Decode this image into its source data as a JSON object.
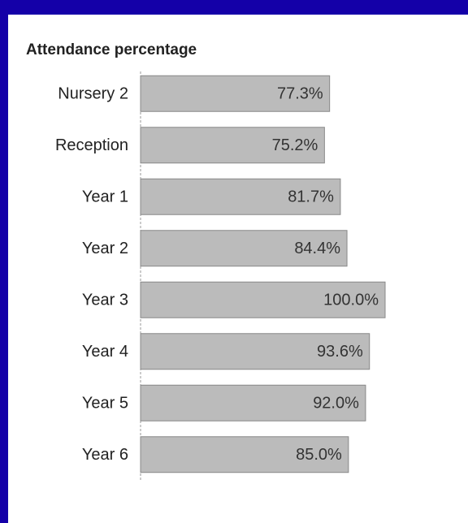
{
  "chart_data": {
    "type": "bar",
    "orientation": "horizontal",
    "title": "Attendance percentage",
    "categories": [
      "Nursery 2",
      "Reception",
      "Year 1",
      "Year 2",
      "Year 3",
      "Year 4",
      "Year 5",
      "Year 6"
    ],
    "values": [
      77.3,
      75.2,
      81.7,
      84.4,
      100,
      93.6,
      92.0,
      85.0
    ],
    "value_labels": [
      "77.3%",
      "75.2%",
      "81.7%",
      "84.4%",
      "100.0%",
      "93.6%",
      "92.0%",
      "85.0%"
    ],
    "color": "#bbbbbb",
    "xlim": [
      0,
      100
    ]
  }
}
